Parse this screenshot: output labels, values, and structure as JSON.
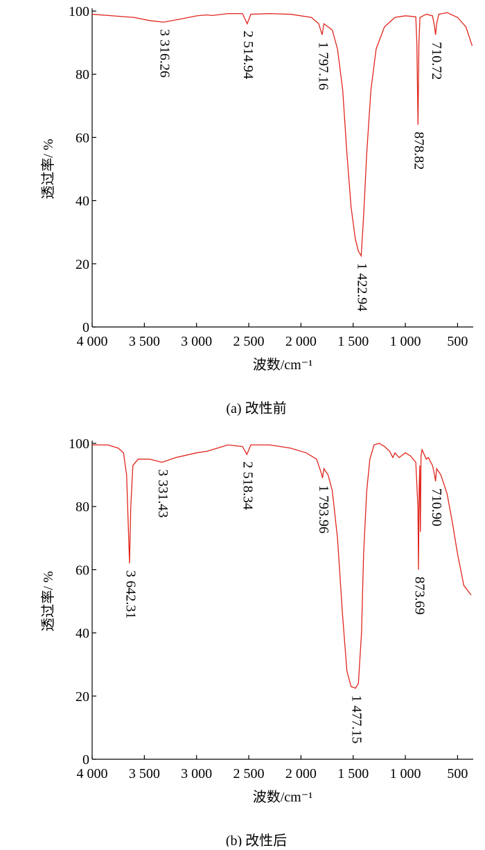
{
  "chart_data": [
    {
      "type": "line",
      "title": "(a) 改性前",
      "x_label": "波数/cm⁻¹",
      "y_label": "透过率/ %",
      "xlim": [
        4000,
        350
      ],
      "ylim": [
        0,
        100
      ],
      "xticks": [
        {
          "value": 4000,
          "label": "4 000"
        },
        {
          "value": 3500,
          "label": "3 500"
        },
        {
          "value": 3000,
          "label": "3 000"
        },
        {
          "value": 2500,
          "label": "2 500"
        },
        {
          "value": 2000,
          "label": "2 000"
        },
        {
          "value": 1500,
          "label": "1 500"
        },
        {
          "value": 1000,
          "label": "1 000"
        },
        500
      ],
      "yticks": [
        0,
        20,
        40,
        60,
        80,
        100
      ],
      "x": [
        4000,
        3800,
        3600,
        3450,
        3316,
        3150,
        3000,
        2900,
        2850,
        2700,
        2560,
        2515,
        2480,
        2300,
        2100,
        1900,
        1830,
        1797,
        1780,
        1700,
        1650,
        1600,
        1560,
        1520,
        1480,
        1450,
        1423,
        1400,
        1370,
        1330,
        1280,
        1200,
        1100,
        1000,
        900,
        890,
        879,
        870,
        860,
        800,
        740,
        720,
        711,
        700,
        680,
        600,
        500,
        420,
        360
      ],
      "series": [
        {
          "color": "#e0241b",
          "values": [
            99,
            98.5,
            98,
            97,
            96.5,
            97.5,
            98.5,
            98.8,
            98.6,
            99.2,
            99.2,
            96,
            99,
            99.2,
            99,
            98,
            96,
            92.5,
            96,
            94,
            88,
            75,
            55,
            38,
            28,
            24,
            22.5,
            35,
            55,
            75,
            88,
            95,
            98,
            98.5,
            98.2,
            90,
            64,
            90,
            98,
            99,
            98.5,
            95,
            92.5,
            96,
            99,
            99.5,
            98,
            95,
            89
          ]
        }
      ],
      "annotations": [
        {
          "x": 3316.26,
          "label": "3 316.26"
        },
        {
          "x": 2514.94,
          "label": "2 514.94"
        },
        {
          "x": 1797.16,
          "label": "1 797.16"
        },
        {
          "x": 1422.94,
          "label": "1 422.94"
        },
        {
          "x": 878.82,
          "label": "878.82"
        },
        {
          "x": 710.72,
          "label": "710.72"
        }
      ]
    },
    {
      "type": "line",
      "title": "(b) 改性后",
      "x_label": "波数/cm⁻¹",
      "y_label": "透过率/ %",
      "xlim": [
        4000,
        350
      ],
      "ylim": [
        0,
        100
      ],
      "xticks": [
        {
          "value": 4000,
          "label": "4 000"
        },
        {
          "value": 3500,
          "label": "3 500"
        },
        {
          "value": 3000,
          "label": "3 000"
        },
        {
          "value": 2500,
          "label": "2 500"
        },
        {
          "value": 2000,
          "label": "2 000"
        },
        {
          "value": 1500,
          "label": "1 500"
        },
        {
          "value": 1000,
          "label": "1 000"
        },
        500
      ],
      "yticks": [
        0,
        20,
        40,
        60,
        80,
        100
      ],
      "x": [
        4000,
        3850,
        3750,
        3700,
        3670,
        3655,
        3642,
        3630,
        3610,
        3560,
        3450,
        3331,
        3200,
        3000,
        2900,
        2800,
        2700,
        2560,
        2518,
        2480,
        2300,
        2100,
        1950,
        1850,
        1800,
        1794,
        1780,
        1740,
        1700,
        1650,
        1600,
        1560,
        1520,
        1477,
        1450,
        1420,
        1400,
        1370,
        1340,
        1300,
        1250,
        1200,
        1150,
        1120,
        1100,
        1060,
        1000,
        950,
        900,
        880,
        874,
        868,
        862,
        856,
        850,
        840,
        800,
        780,
        740,
        720,
        711,
        700,
        660,
        600,
        550,
        500,
        440,
        370
      ],
      "series": [
        {
          "color": "#e0241b",
          "values": [
            99.5,
            99.5,
            98.5,
            97,
            90,
            75,
            62,
            80,
            93,
            95,
            95,
            94,
            95.5,
            97,
            97.5,
            98.5,
            99.5,
            99,
            96.5,
            99.5,
            99.5,
            98.5,
            97,
            95,
            90,
            89,
            92,
            90,
            85,
            70,
            45,
            28,
            23,
            22.5,
            24,
            40,
            65,
            85,
            95,
            99.5,
            100,
            99,
            97.5,
            95.5,
            97,
            95.5,
            97,
            96,
            94,
            80,
            60,
            85,
            93,
            72,
            96,
            98,
            95,
            95.5,
            93,
            90,
            88,
            92,
            90,
            84,
            75,
            65,
            55,
            52
          ]
        }
      ],
      "annotations": [
        {
          "x": 3642.31,
          "label": "3 642.31"
        },
        {
          "x": 3331.43,
          "label": "3 331.43"
        },
        {
          "x": 2518.34,
          "label": "2 518.34"
        },
        {
          "x": 1793.96,
          "label": "1 793.96"
        },
        {
          "x": 1477.15,
          "label": "1 477.15"
        },
        {
          "x": 873.69,
          "label": "873.69"
        },
        {
          "x": 710.9,
          "label": "710.90"
        }
      ]
    }
  ]
}
